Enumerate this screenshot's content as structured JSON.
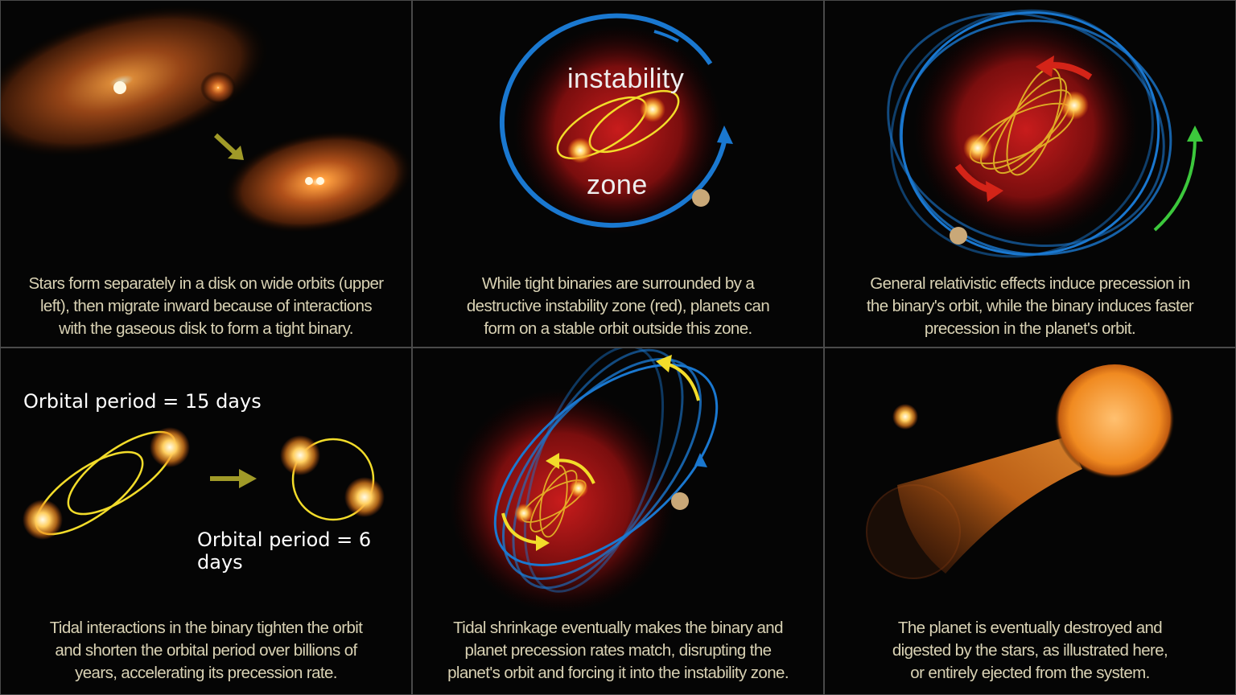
{
  "panels": [
    {
      "caption": "Stars form separately in a disk on wide orbits (upper left), then migrate inward because of interactions with the gaseous disk to form a tight binary.",
      "lines": [
        "Stars form separately in a disk on wide orbits (upper",
        "left), then migrate inward because of interactions",
        "with the gaseous disk to form a tight binary."
      ]
    },
    {
      "lines": [
        "While tight binaries are surrounded by a",
        "destructive instability zone (red), planets can",
        "form on a stable orbit outside this zone."
      ],
      "label_top": "instability",
      "label_bottom": "zone"
    },
    {
      "lines": [
        "General relativistic effects induce precession in",
        "the binary's orbit, while the binary induces faster",
        "precession in the planet's orbit."
      ]
    },
    {
      "lines": [
        "Tidal interactions in the binary tighten the orbit",
        "and shorten the orbital period over billions of",
        "years, accelerating its precession rate."
      ],
      "period_before": "Orbital period = 15 days",
      "period_after": "Orbital period = 6 days"
    },
    {
      "lines": [
        "Tidal shrinkage eventually makes the binary and",
        "planet precession rates match, disrupting the",
        "planet's orbit and forcing it into the instability zone."
      ]
    },
    {
      "lines": [
        "The planet is eventually destroyed and",
        "digested by the stars, as illustrated here,",
        "or entirely ejected from the system."
      ]
    }
  ],
  "colors": {
    "orbit_blue": "#1a78d0",
    "binary_orbit_yellow": "#f2dc2a",
    "instability_red": "#b01818",
    "caption": "#d9d2b4",
    "arrow_olive": "#a09a28",
    "arrow_green": "#3cc83c",
    "arrow_red": "#d42418"
  }
}
